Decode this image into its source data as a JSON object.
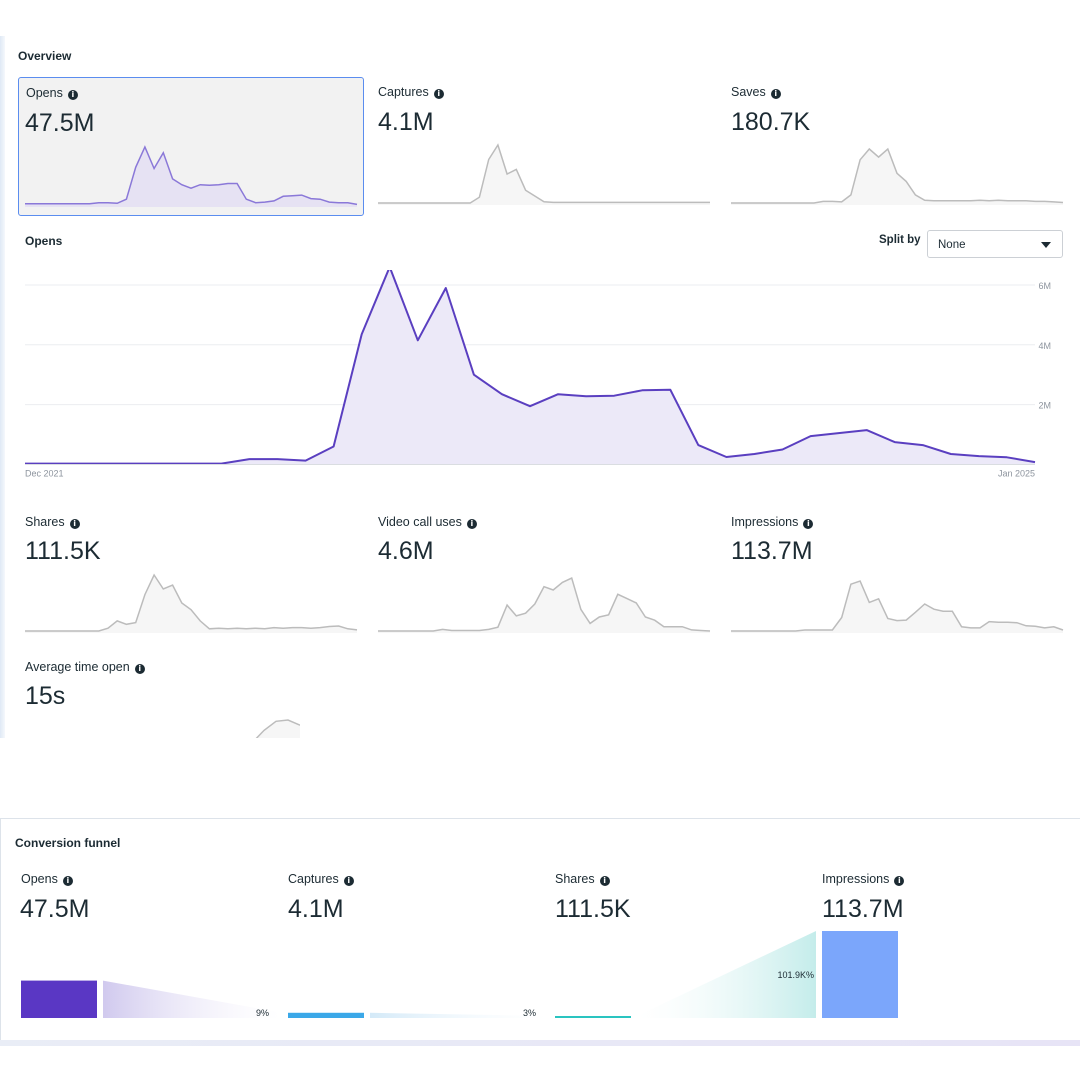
{
  "overview": {
    "title": "Overview",
    "metrics": [
      {
        "label": "Opens",
        "value": "47.5M",
        "selected": true
      },
      {
        "label": "Captures",
        "value": "4.1M"
      },
      {
        "label": "Saves",
        "value": "180.7K"
      },
      {
        "label": "Shares",
        "value": "111.5K"
      },
      {
        "label": "Video call uses",
        "value": "4.6M"
      },
      {
        "label": "Impressions",
        "value": "113.7M"
      },
      {
        "label": "Average time open",
        "value": "15s"
      }
    ],
    "info_icon": "info-icon"
  },
  "main_chart": {
    "title": "Opens",
    "split_label": "Split by",
    "split_value": "None",
    "dropdown_icon": "caret-down-icon"
  },
  "chart_data": {
    "type": "area",
    "title": "Opens",
    "x_start_label": "Dec 2021",
    "x_end_label": "Jan 2025",
    "y_ticks": [
      "2M",
      "4M",
      "6M"
    ],
    "ylim": [
      0,
      6500000
    ],
    "grid": true,
    "series": [
      {
        "values": [
          0.03,
          0.03,
          0.03,
          0.03,
          0.03,
          0.03,
          0.03,
          0.03,
          0.18,
          0.18,
          0.13,
          0.6,
          4.35,
          6.6,
          4.15,
          5.9,
          3.0,
          2.35,
          1.95,
          2.35,
          2.28,
          2.3,
          2.48,
          2.5,
          0.65,
          0.25,
          0.35,
          0.5,
          0.95,
          1.05,
          1.15,
          0.75,
          0.65,
          0.35,
          0.28,
          0.24,
          0.08
        ]
      }
    ],
    "y_unit": "M",
    "colors": {
      "line": "#5a3fc0",
      "fill": "#ece9f8"
    }
  },
  "sparklines": {
    "opens": [
      0.02,
      0.02,
      0.02,
      0.02,
      0.02,
      0.02,
      0.02,
      0.02,
      0.04,
      0.04,
      0.03,
      0.1,
      0.65,
      1.0,
      0.63,
      0.9,
      0.45,
      0.35,
      0.29,
      0.35,
      0.34,
      0.35,
      0.37,
      0.37,
      0.1,
      0.04,
      0.05,
      0.07,
      0.15,
      0.16,
      0.17,
      0.11,
      0.1,
      0.05,
      0.04,
      0.04,
      0.01
    ],
    "captures": [
      0,
      0,
      0,
      0,
      0,
      0,
      0,
      0,
      0,
      0,
      0,
      0.1,
      0.75,
      1.0,
      0.5,
      0.58,
      0.22,
      0.12,
      0.02,
      0.01,
      0.01,
      0.01,
      0.01,
      0.01,
      0.01,
      0.01,
      0.01,
      0.01,
      0.01,
      0.01,
      0.01,
      0.01,
      0.01,
      0.01,
      0.01,
      0.01,
      0.01
    ],
    "saves": [
      0,
      0,
      0,
      0,
      0,
      0,
      0,
      0,
      0,
      0,
      0.03,
      0.03,
      0.02,
      0.15,
      0.8,
      1.0,
      0.85,
      1.0,
      0.55,
      0.4,
      0.15,
      0.05,
      0.04,
      0.04,
      0.04,
      0.04,
      0.04,
      0.05,
      0.04,
      0.05,
      0.04,
      0.04,
      0.04,
      0.03,
      0.03,
      0.02,
      0.01
    ],
    "shares": [
      0,
      0,
      0,
      0,
      0,
      0,
      0,
      0,
      0,
      0.05,
      0.18,
      0.12,
      0.15,
      0.65,
      1.0,
      0.75,
      0.82,
      0.5,
      0.38,
      0.18,
      0.04,
      0.05,
      0.04,
      0.05,
      0.04,
      0.05,
      0.04,
      0.06,
      0.05,
      0.06,
      0.06,
      0.05,
      0.06,
      0.08,
      0.09,
      0.04,
      0.02
    ],
    "video_call_uses": [
      0,
      0,
      0,
      0,
      0,
      0,
      0,
      0.03,
      0.01,
      0.01,
      0.01,
      0.01,
      0.03,
      0.07,
      0.48,
      0.28,
      0.33,
      0.5,
      0.82,
      0.76,
      0.9,
      0.98,
      0.4,
      0.14,
      0.26,
      0.3,
      0.68,
      0.6,
      0.52,
      0.26,
      0.2,
      0.08,
      0.08,
      0.08,
      0.02,
      0.01,
      0.0
    ],
    "impressions": [
      0,
      0,
      0,
      0,
      0,
      0,
      0,
      0,
      0.02,
      0.02,
      0.02,
      0.02,
      0.26,
      0.9,
      0.96,
      0.55,
      0.62,
      0.24,
      0.2,
      0.21,
      0.36,
      0.52,
      0.42,
      0.38,
      0.38,
      0.08,
      0.06,
      0.06,
      0.18,
      0.17,
      0.17,
      0.16,
      0.1,
      0.09,
      0.06,
      0.08,
      0.02
    ],
    "avg_time_open": [
      0.0,
      0.12,
      0.6,
      0.95,
      1.0,
      0.8
    ]
  },
  "funnel": {
    "title": "Conversion funnel",
    "steps": [
      {
        "label": "Opens",
        "value": "47.5M",
        "bar_fraction": 0.43,
        "color": "#5a37c4"
      },
      {
        "label": "Captures",
        "value": "4.1M",
        "bar_fraction": 0.06,
        "color": "#3ba8e8"
      },
      {
        "label": "Shares",
        "value": "111.5K",
        "bar_fraction": 0.02,
        "color": "#2ac4c0"
      },
      {
        "label": "Impressions",
        "value": "113.7M",
        "bar_fraction": 1.0,
        "color": "#7ba6fb"
      }
    ],
    "conversions": [
      {
        "text": "9%"
      },
      {
        "text": "3%"
      },
      {
        "text": "101.9K%"
      }
    ]
  }
}
